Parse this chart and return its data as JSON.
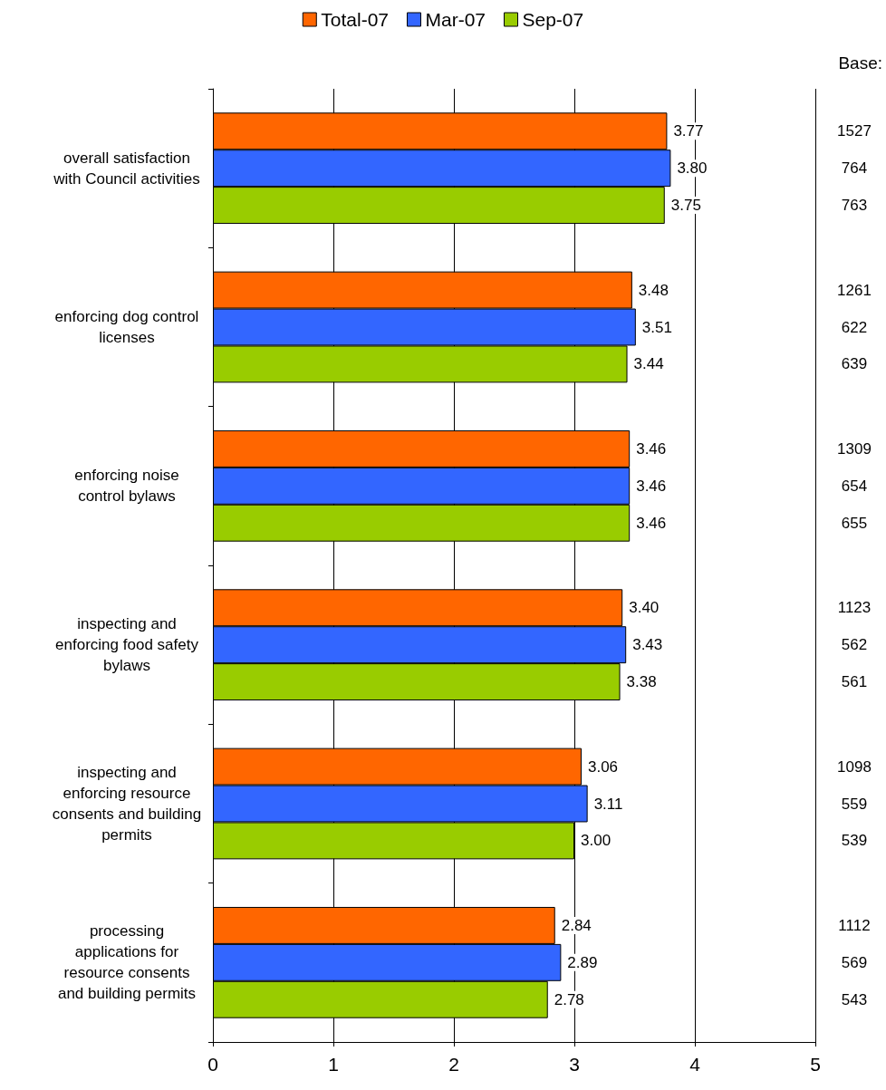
{
  "chart_data": {
    "type": "bar",
    "orientation": "horizontal",
    "categories": [
      "overall satisfaction\nwith Council activities",
      "enforcing dog control\nlicenses",
      "enforcing noise\ncontrol bylaws",
      "inspecting and\nenforcing food safety\nbylaws",
      "inspecting and\nenforcing resource\nconsents and building\npermits",
      "processing\napplications for\nresource consents\nand building permits"
    ],
    "series": [
      {
        "name": "Total-07",
        "color": "#ff6600",
        "values": [
          3.77,
          3.48,
          3.46,
          3.4,
          3.06,
          2.84
        ],
        "value_labels": [
          "3.77",
          "3.48",
          "3.46",
          "3.40",
          "3.06",
          "2.84"
        ]
      },
      {
        "name": "Mar-07",
        "color": "#3366ff",
        "values": [
          3.8,
          3.51,
          3.46,
          3.43,
          3.11,
          2.89
        ],
        "value_labels": [
          "3.80",
          "3.51",
          "3.46",
          "3.43",
          "3.11",
          "2.89"
        ]
      },
      {
        "name": "Sep-07",
        "color": "#99cc00",
        "values": [
          3.75,
          3.44,
          3.46,
          3.38,
          3.0,
          2.78
        ],
        "value_labels": [
          "3.75",
          "3.44",
          "3.46",
          "3.38",
          "3.00",
          "2.78"
        ]
      }
    ],
    "xlim": [
      0,
      5
    ],
    "xticks": [
      0,
      1,
      2,
      3,
      4,
      5
    ],
    "grid": "x",
    "legend": "top",
    "annotations": [
      "Base:",
      "1527",
      "764",
      "763",
      "1261",
      "622",
      "639",
      "1309",
      "654",
      "655",
      "1123",
      "562",
      "561",
      "1098",
      "559",
      "539",
      "1112",
      "569",
      "543"
    ]
  }
}
